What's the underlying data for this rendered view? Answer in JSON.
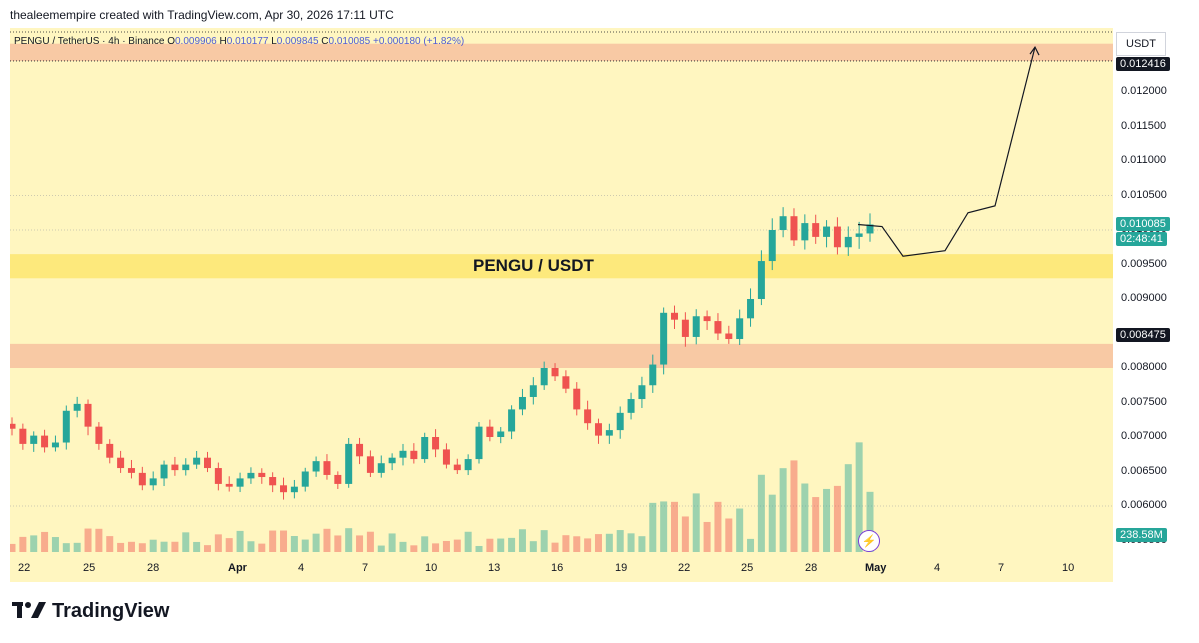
{
  "header": {
    "attribution": "thealeemempire created with TradingView.com, Apr 30, 2026 17:11 UTC"
  },
  "legend": {
    "symbol": "PENGU / TetherUS · 4h · Binance",
    "o_label": "O",
    "o_value": "0.009906",
    "h_label": "H",
    "h_value": "0.010177",
    "l_label": "L",
    "l_value": "0.009845",
    "c_label": "C",
    "c_value": "0.010085",
    "change": "+0.000180 (+1.82%)"
  },
  "pair_label": "PENGU / USDT",
  "currency": "USDT",
  "badges": {
    "target_price": "0.012416",
    "last_price": "0.010085",
    "countdown": "02:48:41",
    "level_price": "0.008475",
    "volume": "238.58M"
  },
  "brand": "TradingView",
  "icons": {
    "brand_logo": "tradingview-logo",
    "flash": "lightning-icon"
  },
  "colors": {
    "background": "#fff6c0",
    "up": "#26a69a",
    "down": "#ef5350",
    "resistance_zone": "#fde97c",
    "support_zone": "#f8c9a4",
    "target_zone": "#f8c9a4",
    "last_price": "#26a69a",
    "level": "#131722"
  },
  "chart_data": {
    "type": "candlestick",
    "x_tick_labels": [
      "22",
      "25",
      "28",
      "Apr",
      "4",
      "7",
      "10",
      "13",
      "16",
      "19",
      "22",
      "25",
      "28",
      "May",
      "4",
      "7",
      "10"
    ],
    "y_tick_labels": [
      "0.012000",
      "0.011500",
      "0.011000",
      "0.010500",
      "0.010000",
      "0.009500",
      "0.009000",
      "0.008500",
      "0.008000",
      "0.007500",
      "0.007000",
      "0.006500",
      "0.006000",
      "0.005500"
    ],
    "ylim": [
      0.0055,
      0.0127
    ],
    "zones": [
      {
        "name": "target",
        "from": 0.01245,
        "to": 0.0127
      },
      {
        "name": "resistance",
        "from": 0.0093,
        "to": 0.00965
      },
      {
        "name": "support",
        "from": 0.008,
        "to": 0.00835
      }
    ],
    "close_path": [
      0.00712,
      0.0069,
      0.00702,
      0.00685,
      0.00692,
      0.00738,
      0.00748,
      0.00715,
      0.0069,
      0.0067,
      0.00655,
      0.00648,
      0.0063,
      0.0064,
      0.0066,
      0.00652,
      0.0066,
      0.0067,
      0.00655,
      0.00632,
      0.00628,
      0.0064,
      0.00648,
      0.00642,
      0.0063,
      0.0062,
      0.00628,
      0.0065,
      0.00665,
      0.00645,
      0.00632,
      0.0069,
      0.00672,
      0.00648,
      0.00662,
      0.0067,
      0.0068,
      0.00668,
      0.007,
      0.00682,
      0.0066,
      0.00652,
      0.00668,
      0.00715,
      0.007,
      0.00708,
      0.0074,
      0.00758,
      0.00775,
      0.008,
      0.00788,
      0.0077,
      0.0074,
      0.0072,
      0.00702,
      0.0071,
      0.00735,
      0.00755,
      0.00775,
      0.00805,
      0.0088,
      0.0087,
      0.00845,
      0.00875,
      0.00868,
      0.0085,
      0.00842,
      0.00872,
      0.009,
      0.00955,
      0.01,
      0.0102,
      0.00985,
      0.0101,
      0.0099,
      0.01005,
      0.00975,
      0.0099,
      0.00995,
      0.01008
    ],
    "projection": [
      {
        "date": "Apr 30",
        "price": 0.01008
      },
      {
        "date": "May 1",
        "price": 0.01005
      },
      {
        "date": "May 1",
        "price": 0.00962
      },
      {
        "date": "May 3",
        "price": 0.0097
      },
      {
        "date": "May 4",
        "price": 0.01025
      },
      {
        "date": "May 5",
        "price": 0.01035
      },
      {
        "date": "May 7",
        "price": 0.01265
      }
    ],
    "volume": {
      "last": "238.58M"
    }
  }
}
